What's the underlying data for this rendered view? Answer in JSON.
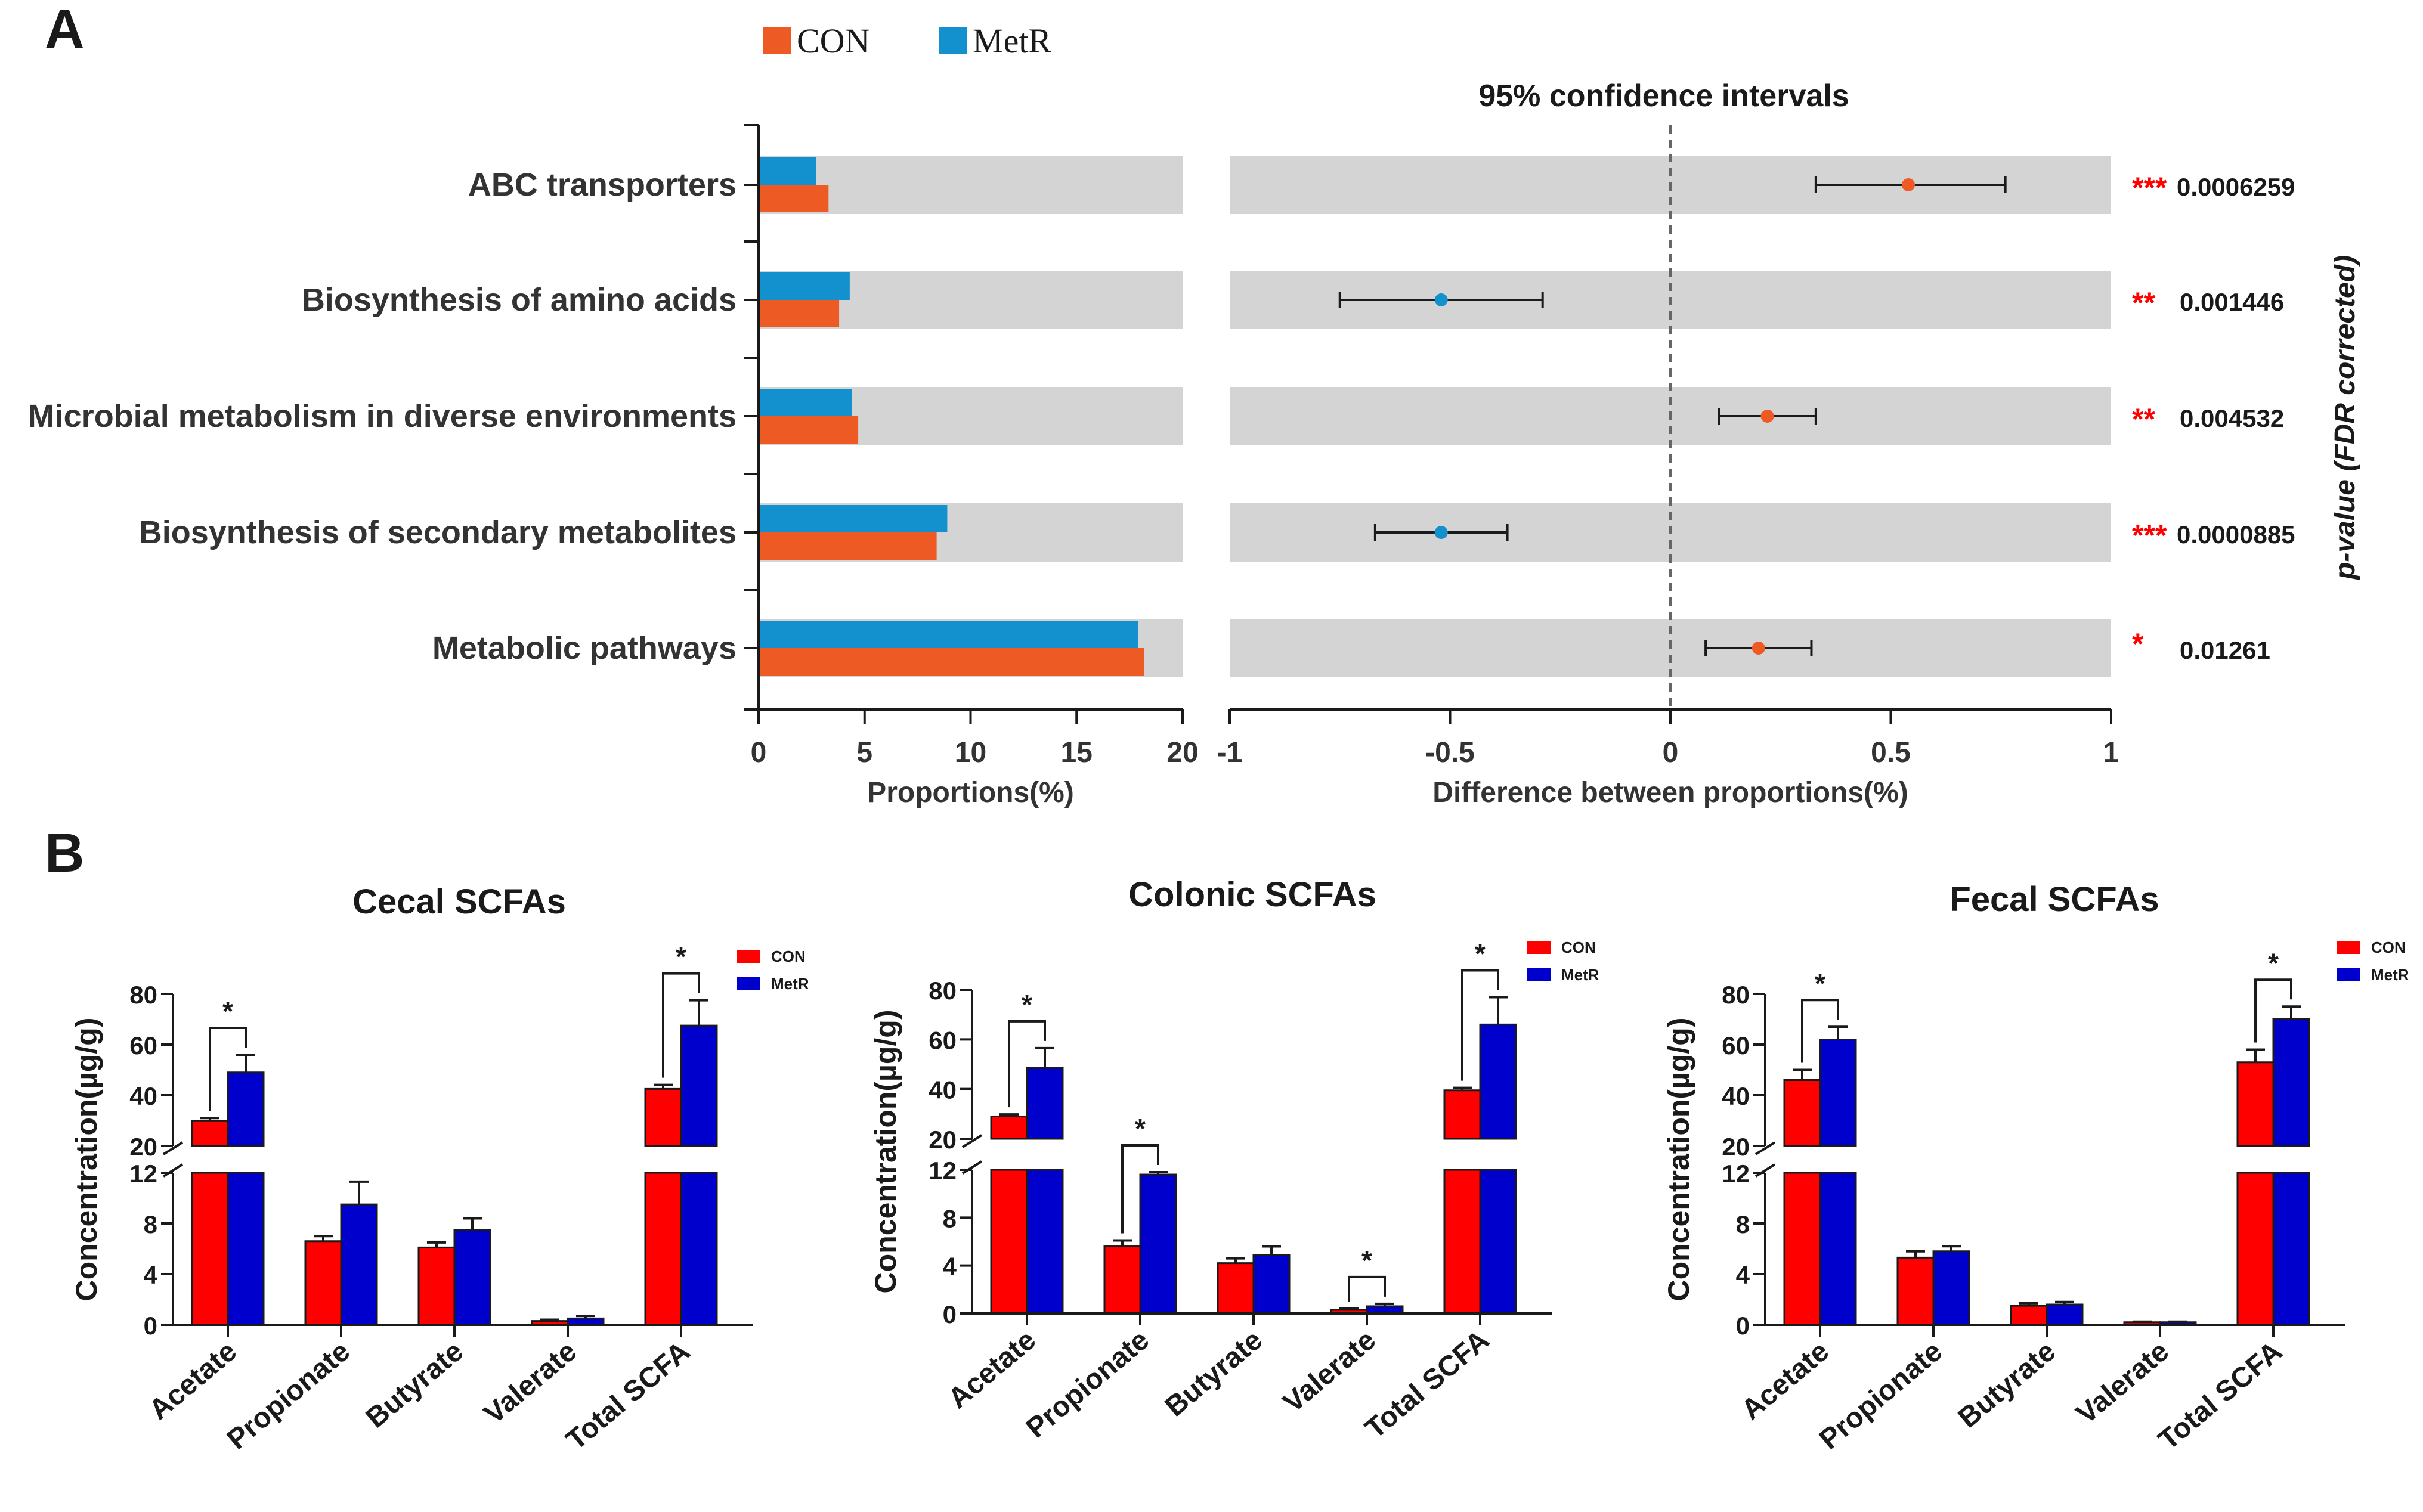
{
  "colors": {
    "con_a": "#EE5A24",
    "metr_a": "#1291CE",
    "band": "#D4D4D4",
    "con_b": "#FF0000",
    "metr_b": "#0000CC",
    "sig": "#FF0000",
    "ink": "#1a1a1a"
  },
  "panel_a": {
    "label": "A",
    "legend": [
      {
        "name": "CON",
        "color_key": "con_a"
      },
      {
        "name": "MetR",
        "color_key": "metr_a"
      }
    ],
    "ci_title": "95% confidence intervals",
    "pvalue_axis_label": "p-value (FDR corrected)"
  },
  "panel_b": {
    "label": "B"
  },
  "chart_data": [
    {
      "type": "bar",
      "id": "proportions",
      "orientation": "horizontal",
      "categories": [
        "ABC transporters",
        "Biosynthesis of amino acids",
        "Microbial metabolism in diverse environments",
        "Biosynthesis of secondary metabolites",
        "Metabolic pathways"
      ],
      "series": [
        {
          "name": "MetR",
          "values": [
            2.7,
            4.3,
            4.4,
            8.9,
            17.9
          ]
        },
        {
          "name": "CON",
          "values": [
            3.3,
            3.8,
            4.7,
            8.4,
            18.2
          ]
        }
      ],
      "xlabel": "Proportions(%)",
      "xlim": [
        0,
        20
      ],
      "xticks": [
        "0",
        "5",
        "10",
        "15",
        "20"
      ]
    },
    {
      "type": "scatter",
      "id": "difference_ci",
      "title": "95% confidence intervals",
      "categories": [
        "ABC transporters",
        "Biosynthesis of amino acids",
        "Microbial metabolism in diverse environments",
        "Biosynthesis of secondary metabolites",
        "Metabolic pathways"
      ],
      "points": [
        {
          "estimate": 0.54,
          "ci": [
            0.33,
            0.76
          ],
          "enriched": "CON",
          "stars": "***",
          "pvalue": "0.0006259"
        },
        {
          "estimate": -0.52,
          "ci": [
            -0.75,
            -0.29
          ],
          "enriched": "MetR",
          "stars": "**",
          "pvalue": "0.001446"
        },
        {
          "estimate": 0.22,
          "ci": [
            0.11,
            0.33
          ],
          "enriched": "CON",
          "stars": "**",
          "pvalue": "0.004532"
        },
        {
          "estimate": -0.52,
          "ci": [
            -0.67,
            -0.37
          ],
          "enriched": "MetR",
          "stars": "***",
          "pvalue": "0.0000885"
        },
        {
          "estimate": 0.2,
          "ci": [
            0.08,
            0.32
          ],
          "enriched": "CON",
          "stars": "*",
          "pvalue": "0.01261"
        }
      ],
      "xlabel": "Difference between proportions(%)",
      "xlim": [
        -1,
        1
      ],
      "xticks": [
        "-1",
        "-0.5",
        "0",
        "0.5",
        "1"
      ],
      "reference_line": 0
    },
    {
      "type": "bar",
      "id": "cecal",
      "title": "Cecal SCFAs",
      "ylabel": "Concentration(µg/g)",
      "categories": [
        "Acetate",
        "Propionate",
        "Butyrate",
        "Valerate",
        "Total SCFA"
      ],
      "series": [
        {
          "name": "CON",
          "values": [
            29.8,
            6.6,
            6.1,
            0.3,
            42.5
          ],
          "errors": [
            1.2,
            0.4,
            0.4,
            0.1,
            1.6
          ]
        },
        {
          "name": "MetR",
          "values": [
            49.0,
            9.5,
            7.5,
            0.5,
            67.5
          ],
          "errors": [
            7.0,
            1.8,
            0.9,
            0.2,
            10.0
          ]
        }
      ],
      "significance": [
        {
          "category": "Acetate",
          "label": "*"
        },
        {
          "category": "Total SCFA",
          "label": "*"
        }
      ],
      "yaxis_lower_ticks": [
        "0",
        "4",
        "8",
        "12"
      ],
      "yaxis_upper_ticks": [
        "20",
        "40",
        "60",
        "80"
      ],
      "ylim_lower": [
        0,
        12
      ],
      "ylim_upper": [
        20,
        80
      ],
      "legend": [
        "CON",
        "MetR"
      ]
    },
    {
      "type": "bar",
      "id": "colonic",
      "title": "Colonic SCFAs",
      "ylabel": "Concentration(µg/g)",
      "categories": [
        "Acetate",
        "Propionate",
        "Butyrate",
        "Valerate",
        "Total SCFA"
      ],
      "series": [
        {
          "name": "CON",
          "values": [
            29.0,
            5.6,
            4.2,
            0.3,
            39.5
          ],
          "errors": [
            0.8,
            0.5,
            0.4,
            0.1,
            1.0
          ]
        },
        {
          "name": "MetR",
          "values": [
            48.5,
            11.6,
            4.9,
            0.6,
            66.0
          ],
          "errors": [
            8.0,
            0.2,
            0.7,
            0.2,
            11.0
          ]
        }
      ],
      "significance": [
        {
          "category": "Acetate",
          "label": "*"
        },
        {
          "category": "Propionate",
          "label": "*"
        },
        {
          "category": "Valerate",
          "label": "*"
        },
        {
          "category": "Total SCFA",
          "label": "*"
        }
      ],
      "yaxis_lower_ticks": [
        "0",
        "4",
        "8",
        "12"
      ],
      "yaxis_upper_ticks": [
        "20",
        "40",
        "60",
        "80"
      ],
      "ylim_lower": [
        0,
        12
      ],
      "ylim_upper": [
        20,
        80
      ],
      "legend": [
        "CON",
        "MetR"
      ]
    },
    {
      "type": "bar",
      "id": "fecal",
      "title": "Fecal SCFAs",
      "ylabel": "Concentration(µg/g)",
      "categories": [
        "Acetate",
        "Propionate",
        "Butyrate",
        "Valerate",
        "Total SCFA"
      ],
      "series": [
        {
          "name": "CON",
          "values": [
            46.0,
            5.3,
            1.5,
            0.2,
            53.0
          ],
          "errors": [
            4.0,
            0.5,
            0.2,
            0.05,
            5.0
          ]
        },
        {
          "name": "MetR",
          "values": [
            62.0,
            5.8,
            1.6,
            0.2,
            70.0
          ],
          "errors": [
            5.0,
            0.4,
            0.2,
            0.05,
            5.0
          ]
        }
      ],
      "significance": [
        {
          "category": "Acetate",
          "label": "*"
        },
        {
          "category": "Total SCFA",
          "label": "*"
        }
      ],
      "yaxis_lower_ticks": [
        "0",
        "4",
        "8",
        "12"
      ],
      "yaxis_upper_ticks": [
        "20",
        "40",
        "60",
        "80"
      ],
      "ylim_lower": [
        0,
        12
      ],
      "ylim_upper": [
        20,
        80
      ],
      "legend": [
        "CON",
        "MetR"
      ]
    }
  ]
}
